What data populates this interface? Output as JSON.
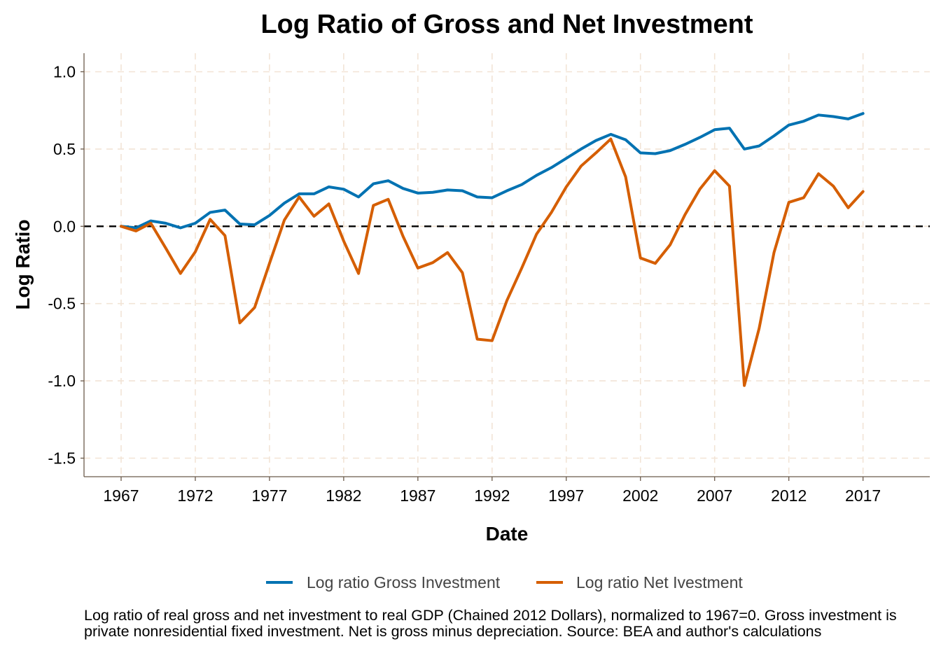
{
  "chart_data": {
    "type": "line",
    "title": "Log Ratio of Gross and Net Investment",
    "xlabel": "Date",
    "ylabel": "Log Ratio",
    "xlim": [
      1964.5,
      2021.5
    ],
    "ylim": [
      -1.62,
      1.12
    ],
    "x_ticks": [
      1967,
      1972,
      1977,
      1982,
      1987,
      1992,
      1997,
      2002,
      2007,
      2012,
      2017
    ],
    "x_tick_labels": [
      "1967",
      "1972",
      "1977",
      "1982",
      "1987",
      "1992",
      "1997",
      "2002",
      "2007",
      "2012",
      "2017"
    ],
    "y_ticks": [
      1.0,
      0.5,
      0.0,
      -0.5,
      -1.0,
      -1.5
    ],
    "y_tick_labels": [
      "1.0",
      "0.5",
      "0.0",
      "-0.5",
      "-1.0",
      "-1.5"
    ],
    "grid": true,
    "reference_line": 0,
    "legend_position": "bottom",
    "x": [
      1967,
      1968,
      1969,
      1970,
      1971,
      1972,
      1973,
      1974,
      1975,
      1976,
      1977,
      1978,
      1979,
      1980,
      1981,
      1982,
      1983,
      1984,
      1985,
      1986,
      1987,
      1988,
      1989,
      1990,
      1991,
      1992,
      1993,
      1994,
      1995,
      1996,
      1997,
      1998,
      1999,
      2000,
      2001,
      2002,
      2003,
      2004,
      2005,
      2006,
      2007,
      2008,
      2009,
      2010,
      2011,
      2012,
      2013,
      2014,
      2015,
      2016,
      2017
    ],
    "series": [
      {
        "name": "Log ratio Gross Investment",
        "color": "#0072B2",
        "values": [
          0.0,
          -0.01,
          0.035,
          0.02,
          -0.01,
          0.02,
          0.09,
          0.105,
          0.015,
          0.01,
          0.07,
          0.15,
          0.21,
          0.21,
          0.255,
          0.24,
          0.19,
          0.275,
          0.295,
          0.245,
          0.215,
          0.22,
          0.235,
          0.23,
          0.19,
          0.185,
          0.23,
          0.27,
          0.33,
          0.38,
          0.44,
          0.5,
          0.555,
          0.595,
          0.56,
          0.475,
          0.47,
          0.49,
          0.53,
          0.575,
          0.625,
          0.635,
          0.5,
          0.52,
          0.585,
          0.655,
          0.68,
          0.72,
          0.71,
          0.695,
          0.73
        ]
      },
      {
        "name": "Log ratio Net Ivestment",
        "color": "#D55E00",
        "values": [
          0.0,
          -0.03,
          0.02,
          -0.14,
          -0.305,
          -0.165,
          0.045,
          -0.06,
          -0.625,
          -0.525,
          -0.24,
          0.04,
          0.19,
          0.065,
          0.145,
          -0.095,
          -0.305,
          0.135,
          0.175,
          -0.065,
          -0.27,
          -0.235,
          -0.17,
          -0.3,
          -0.73,
          -0.74,
          -0.48,
          -0.27,
          -0.05,
          0.09,
          0.255,
          0.39,
          0.475,
          0.565,
          0.32,
          -0.205,
          -0.24,
          -0.12,
          0.075,
          0.24,
          0.36,
          0.26,
          -1.03,
          -0.66,
          -0.17,
          0.155,
          0.185,
          0.34,
          0.26,
          0.12,
          0.225
        ]
      }
    ],
    "caption": "Log ratio of real gross and net investment to real GDP (Chained 2012 Dollars), normalized to 1967=0. Gross investment is private nonresidential fixed investment. Net is gross minus depreciation. Source: BEA and author's calculations"
  }
}
